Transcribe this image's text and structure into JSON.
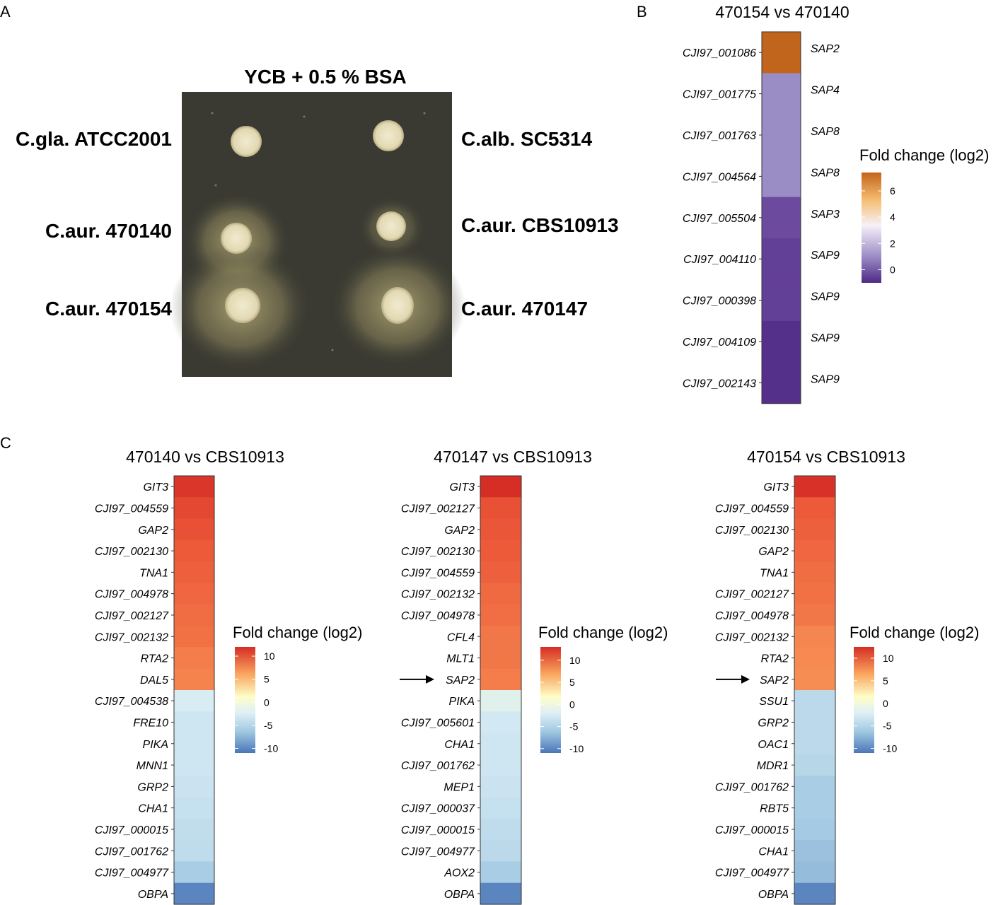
{
  "panels": {
    "a": {
      "letter": "A",
      "plate_title": "YCB + 0.5 % BSA",
      "strains": [
        {
          "label": "C.gla. ATCC2001",
          "halo": 0
        },
        {
          "label": "C.alb. SC5314",
          "halo": 0
        },
        {
          "label": "C.aur. 470140",
          "halo": 0.5
        },
        {
          "label": "C.aur. CBS10913",
          "halo": 0.2
        },
        {
          "label": "C.aur. 470154",
          "halo": 1
        },
        {
          "label": "C.aur. 470147",
          "halo": 0.9
        }
      ]
    },
    "b": {
      "letter": "B"
    },
    "c": {
      "letter": "C"
    }
  },
  "colors": {
    "plate_bg": "#3a3a32",
    "colony": "#e6dfc0",
    "halo": "#c8bd85",
    "purple_low": "#4e2a86",
    "purple_mid": "#f6f1f8",
    "orange_high": "#c2651c",
    "blue_low": "#4a76b8",
    "center": "#fefec8",
    "red_high": "#d62d25"
  },
  "chart_data": [
    {
      "type": "heatmap",
      "title": "470154 vs 470140",
      "legend_title": "Fold change (log2)",
      "scale": "purple-orange",
      "legend_ticks": [
        6,
        4,
        2,
        0
      ],
      "legend_range": [
        -1,
        7.4
      ],
      "rows": [
        {
          "id": "CJI97_001086",
          "gene": "SAP2",
          "value": 7.0
        },
        {
          "id": "CJI97_001775",
          "gene": "SAP4",
          "value": 1.0
        },
        {
          "id": "CJI97_001763",
          "gene": "SAP8",
          "value": 1.0
        },
        {
          "id": "CJI97_004564",
          "gene": "SAP8",
          "value": 1.0
        },
        {
          "id": "CJI97_005504",
          "gene": "SAP3",
          "value": 0.0
        },
        {
          "id": "CJI97_004110",
          "gene": "SAP9",
          "value": -0.3
        },
        {
          "id": "CJI97_000398",
          "gene": "SAP9",
          "value": -0.3
        },
        {
          "id": "CJI97_004109",
          "gene": "SAP9",
          "value": -0.8
        },
        {
          "id": "CJI97_002143",
          "gene": "SAP9",
          "value": -0.8
        }
      ]
    },
    {
      "type": "heatmap",
      "title": "470140 vs CBS10913",
      "legend_title": "Fold change (log2)",
      "scale": "blue-red",
      "legend_ticks": [
        10,
        5,
        0,
        -5,
        -10
      ],
      "legend_range": [
        -11,
        12
      ],
      "arrow_gene": "",
      "rows": [
        {
          "gene": "GIT3",
          "value": 12
        },
        {
          "gene": "CJI97_004559",
          "value": 11
        },
        {
          "gene": "GAP2",
          "value": 10.5
        },
        {
          "gene": "CJI97_002130",
          "value": 10
        },
        {
          "gene": "TNA1",
          "value": 9.8
        },
        {
          "gene": "CJI97_004978",
          "value": 9.6
        },
        {
          "gene": "CJI97_002127",
          "value": 9.4
        },
        {
          "gene": "CJI97_002132",
          "value": 9.2
        },
        {
          "gene": "RTA2",
          "value": 8.8
        },
        {
          "gene": "DAL5",
          "value": 8.6
        },
        {
          "gene": "CJI97_004538",
          "value": -2.5
        },
        {
          "gene": "FRE10",
          "value": -3
        },
        {
          "gene": "PIKA",
          "value": -3
        },
        {
          "gene": "MNN1",
          "value": -3
        },
        {
          "gene": "GRP2",
          "value": -3.2
        },
        {
          "gene": "CHA1",
          "value": -3.5
        },
        {
          "gene": "CJI97_000015",
          "value": -3.7
        },
        {
          "gene": "CJI97_001762",
          "value": -3.8
        },
        {
          "gene": "CJI97_004977",
          "value": -5
        },
        {
          "gene": "OBPA",
          "value": -10
        }
      ]
    },
    {
      "type": "heatmap",
      "title": "470147 vs CBS10913",
      "legend_title": "Fold change (log2)",
      "scale": "blue-red",
      "legend_ticks": [
        10,
        5,
        0,
        -5,
        -10
      ],
      "legend_range": [
        -11,
        13
      ],
      "arrow_gene": "SAP2",
      "rows": [
        {
          "gene": "GIT3",
          "value": 12.5
        },
        {
          "gene": "CJI97_002127",
          "value": 10.5
        },
        {
          "gene": "GAP2",
          "value": 10.2
        },
        {
          "gene": "CJI97_002130",
          "value": 10
        },
        {
          "gene": "CJI97_004559",
          "value": 9.8
        },
        {
          "gene": "CJI97_002132",
          "value": 9.5
        },
        {
          "gene": "CJI97_004978",
          "value": 9.3
        },
        {
          "gene": "CFL4",
          "value": 9
        },
        {
          "gene": "MLT1",
          "value": 9
        },
        {
          "gene": "SAP2",
          "value": 8.8
        },
        {
          "gene": "PIKA",
          "value": -2
        },
        {
          "gene": "CJI97_005601",
          "value": -2.8
        },
        {
          "gene": "CHA1",
          "value": -3
        },
        {
          "gene": "CJI97_001762",
          "value": -3
        },
        {
          "gene": "MEP1",
          "value": -3.2
        },
        {
          "gene": "CJI97_000037",
          "value": -3.5
        },
        {
          "gene": "CJI97_000015",
          "value": -3.8
        },
        {
          "gene": "CJI97_004977",
          "value": -4
        },
        {
          "gene": "AOX2",
          "value": -5
        },
        {
          "gene": "OBPA",
          "value": -10
        }
      ]
    },
    {
      "type": "heatmap",
      "title": "470154 vs CBS10913",
      "legend_title": "Fold change (log2)",
      "scale": "blue-red",
      "legend_ticks": [
        10,
        5,
        0,
        -5,
        -10
      ],
      "legend_range": [
        -11,
        12.5
      ],
      "arrow_gene": "SAP2",
      "rows": [
        {
          "gene": "GIT3",
          "value": 12.3
        },
        {
          "gene": "CJI97_004559",
          "value": 10
        },
        {
          "gene": "CJI97_002130",
          "value": 9.8
        },
        {
          "gene": "GAP2",
          "value": 9.6
        },
        {
          "gene": "TNA1",
          "value": 9.4
        },
        {
          "gene": "CJI97_002127",
          "value": 9.2
        },
        {
          "gene": "CJI97_004978",
          "value": 9
        },
        {
          "gene": "CJI97_002132",
          "value": 8.4
        },
        {
          "gene": "RTA2",
          "value": 8.2
        },
        {
          "gene": "SAP2",
          "value": 8
        },
        {
          "gene": "SSU1",
          "value": -4
        },
        {
          "gene": "GRP2",
          "value": -4
        },
        {
          "gene": "OAC1",
          "value": -4
        },
        {
          "gene": "MDR1",
          "value": -4.2
        },
        {
          "gene": "CJI97_001762",
          "value": -5
        },
        {
          "gene": "RBT5",
          "value": -5
        },
        {
          "gene": "CJI97_000015",
          "value": -5.2
        },
        {
          "gene": "CHA1",
          "value": -5.8
        },
        {
          "gene": "CJI97_004977",
          "value": -6.2
        },
        {
          "gene": "OBPA",
          "value": -10
        }
      ]
    }
  ]
}
